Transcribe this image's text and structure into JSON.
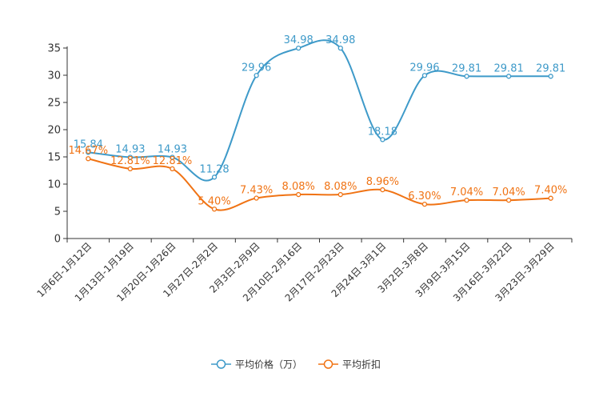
{
  "chart_data": {
    "type": "line",
    "title": "",
    "xlabel": "",
    "ylabel": "",
    "ylim": [
      0,
      35
    ],
    "yticks": [
      0,
      5,
      10,
      15,
      20,
      25,
      30,
      35
    ],
    "grid": false,
    "legend_position": "bottom-center",
    "categories": [
      "1月6日-1月12日",
      "1月13日-1月19日",
      "1月20日-1月26日",
      "1月27日-2月2日",
      "2月3日-2月9日",
      "2月10日-2月16日",
      "2月17日-2月23日",
      "2月24日-3月1日",
      "3月2日-3月8日",
      "3月9日-3月15日",
      "3月16日-3月22日",
      "3月23日-3月29日"
    ],
    "series": [
      {
        "name": "平均价格（万）",
        "color": "#3e9ac9",
        "values": [
          15.84,
          14.93,
          14.93,
          11.28,
          29.96,
          34.98,
          34.98,
          18.18,
          29.96,
          29.81,
          29.81,
          29.81
        ],
        "labels": [
          "15.84",
          "14.93",
          "14.93",
          "11.28",
          "29.96",
          "34.98",
          "34.98",
          "18.18",
          "29.96",
          "29.81",
          "29.81",
          "29.81"
        ]
      },
      {
        "name": "平均折扣",
        "color": "#f07314",
        "values": [
          14.67,
          12.81,
          12.81,
          5.4,
          7.43,
          8.08,
          8.08,
          8.96,
          6.3,
          7.04,
          7.04,
          7.4
        ],
        "labels": [
          "14.67%",
          "12.81%",
          "12.81%",
          "5.40%",
          "7.43%",
          "8.08%",
          "8.08%",
          "8.96%",
          "6.30%",
          "7.04%",
          "7.04%",
          "7.40%"
        ]
      }
    ]
  }
}
